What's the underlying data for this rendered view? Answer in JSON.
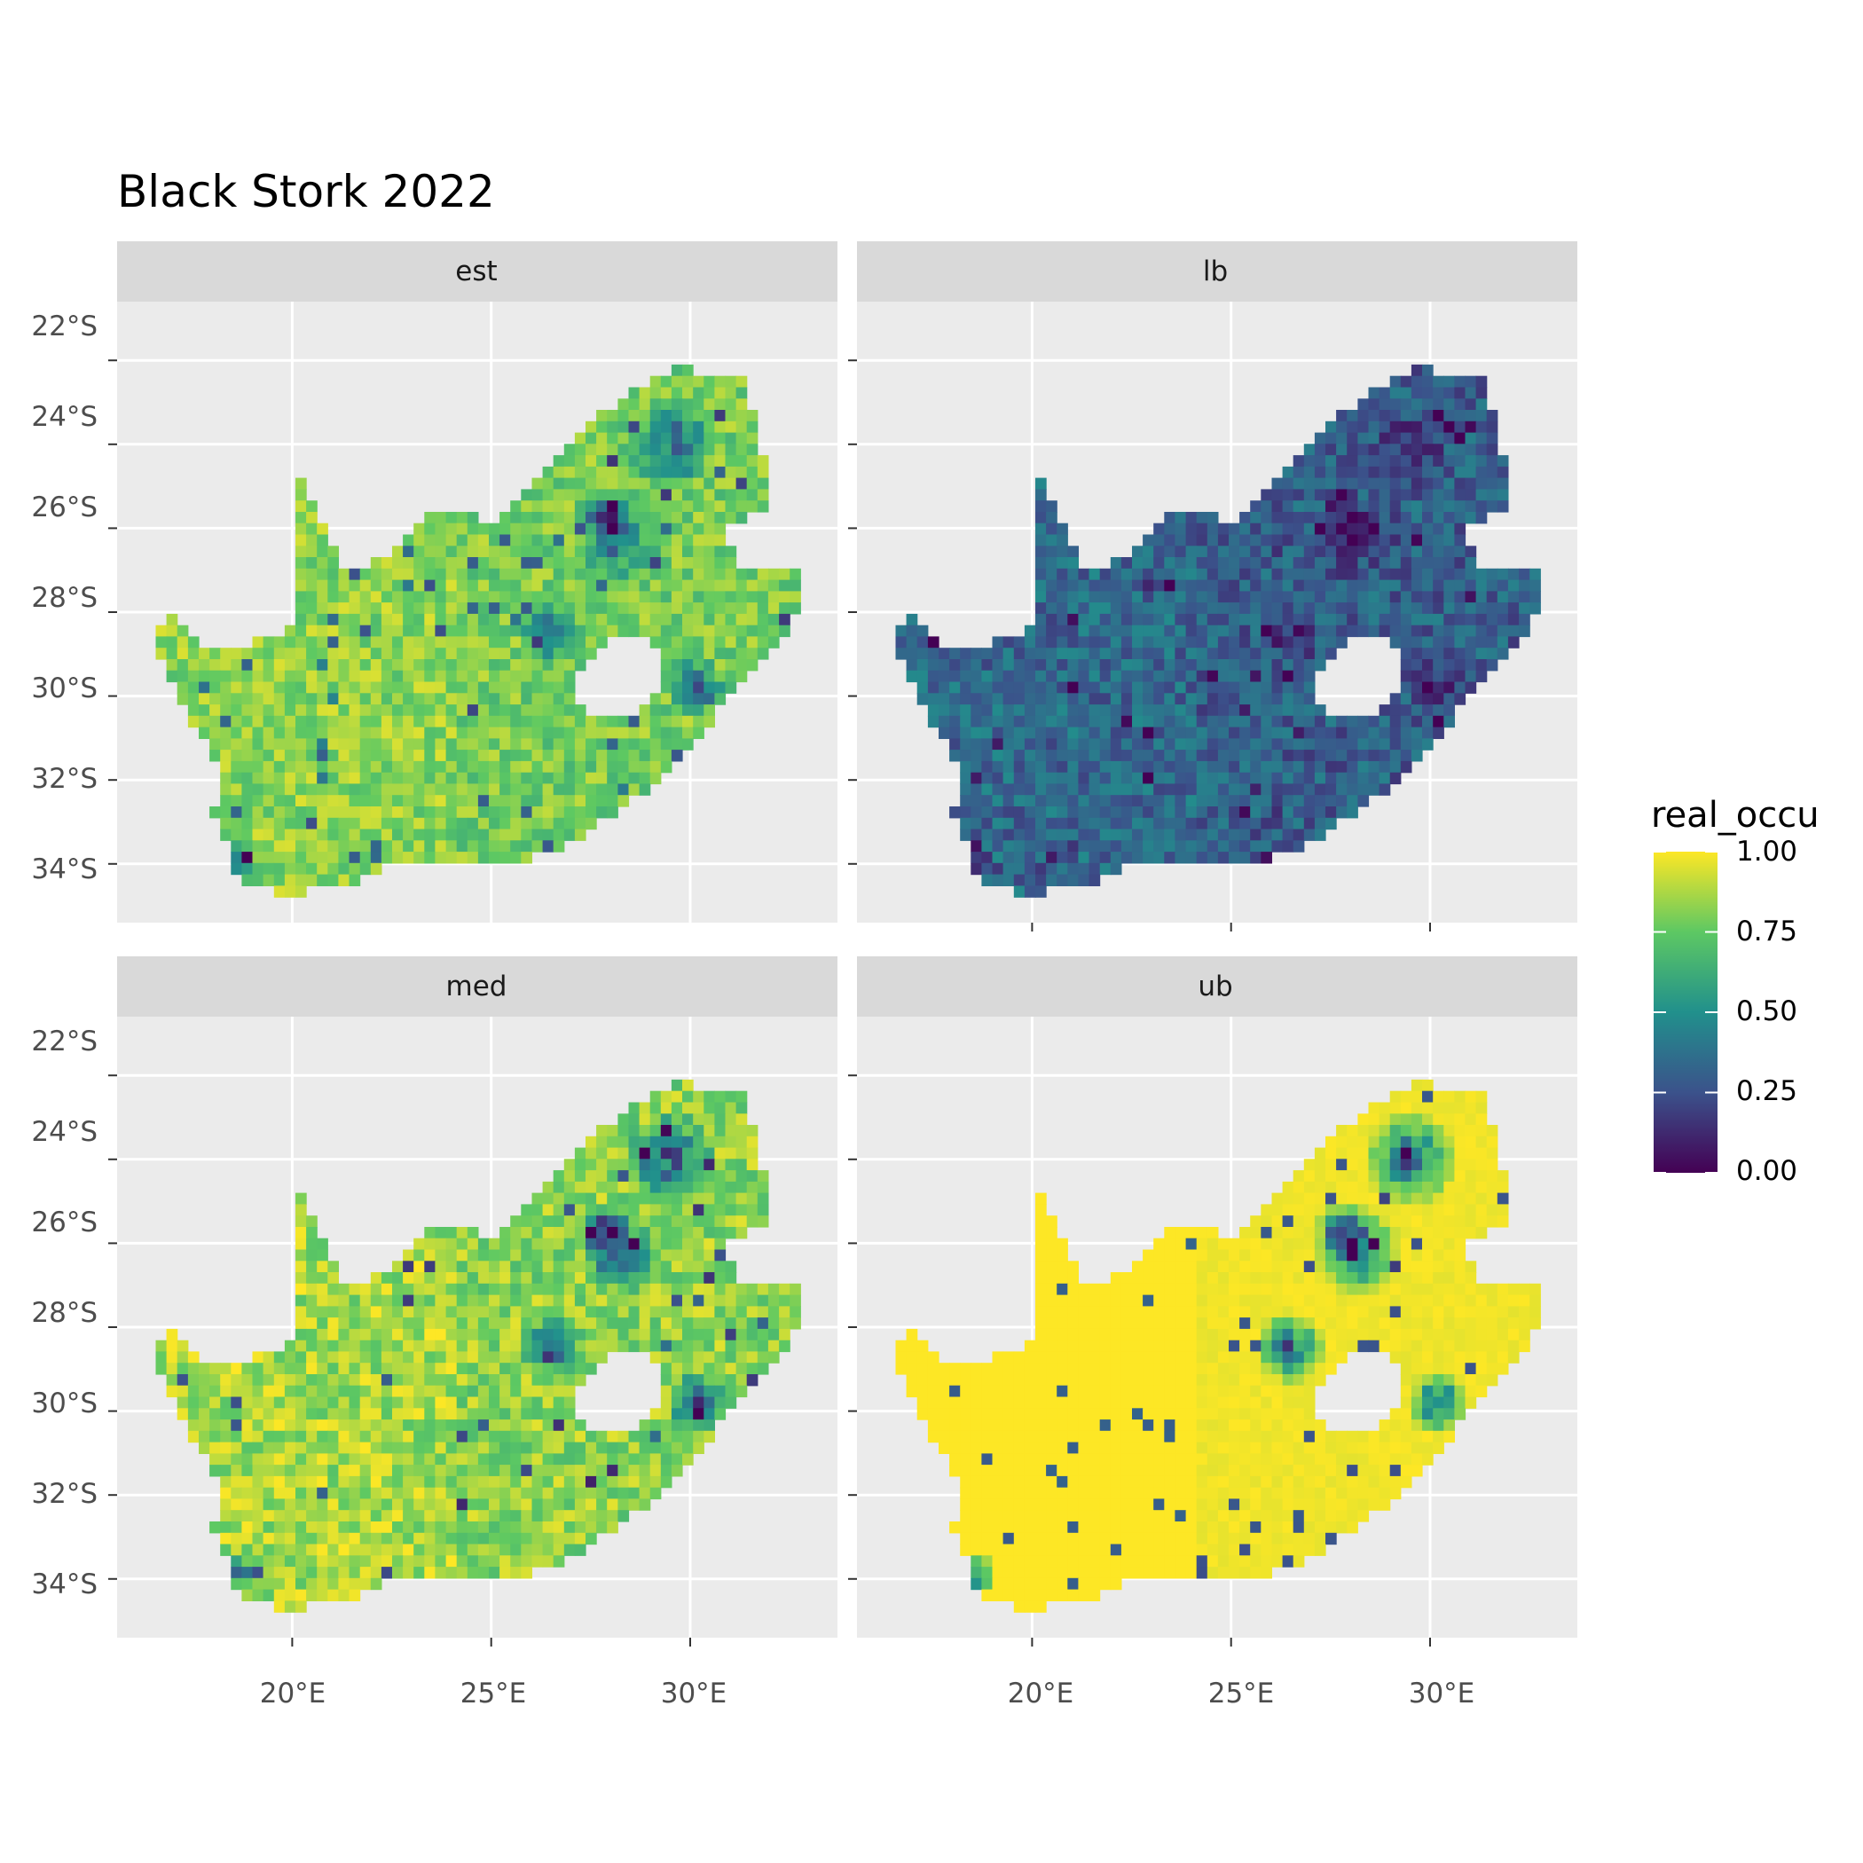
{
  "title": "Black Stork 2022",
  "colors": {
    "panel_background": "#ebebeb",
    "grid_major": "#ffffff",
    "strip_background": "#d9d9d9",
    "viridis": [
      "#440154",
      "#3b528b",
      "#21908c",
      "#5dc863",
      "#fde725"
    ]
  },
  "chart_data": {
    "type": "heatmap",
    "description_of_fill": "occupancy probability on a grid over South Africa",
    "x_axis": {
      "ticks": [
        "20°E",
        "25°E",
        "30°E"
      ],
      "tick_values": [
        20,
        25,
        30
      ],
      "range": [
        15.6,
        33.7
      ]
    },
    "y_axis": {
      "ticks": [
        "22°S",
        "24°S",
        "26°S",
        "28°S",
        "30°S",
        "32°S",
        "34°S"
      ],
      "tick_values": [
        -22,
        -24,
        -26,
        -28,
        -30,
        -32,
        -34
      ],
      "range": [
        -35.4,
        -20.6
      ]
    },
    "grid": true,
    "legend": {
      "title": "real_occu",
      "placement": "right",
      "scale": "viridis",
      "range": [
        0,
        1
      ],
      "breaks": [
        "1.00",
        "0.75",
        "0.50",
        "0.25",
        "0.00"
      ],
      "break_values": [
        1.0,
        0.75,
        0.5,
        0.25,
        0.0
      ]
    },
    "facets": [
      {
        "label": "est",
        "mean_value": 0.78,
        "spread": 0.13,
        "low_spot_strength": 0.55
      },
      {
        "label": "lb",
        "mean_value": 0.3,
        "spread": 0.14,
        "low_spot_strength": 0.25
      },
      {
        "label": "med",
        "mean_value": 0.82,
        "spread": 0.14,
        "low_spot_strength": 0.65
      },
      {
        "label": "ub",
        "mean_value": 0.98,
        "spread": 0.02,
        "low_spot_strength": 0.8
      }
    ]
  }
}
